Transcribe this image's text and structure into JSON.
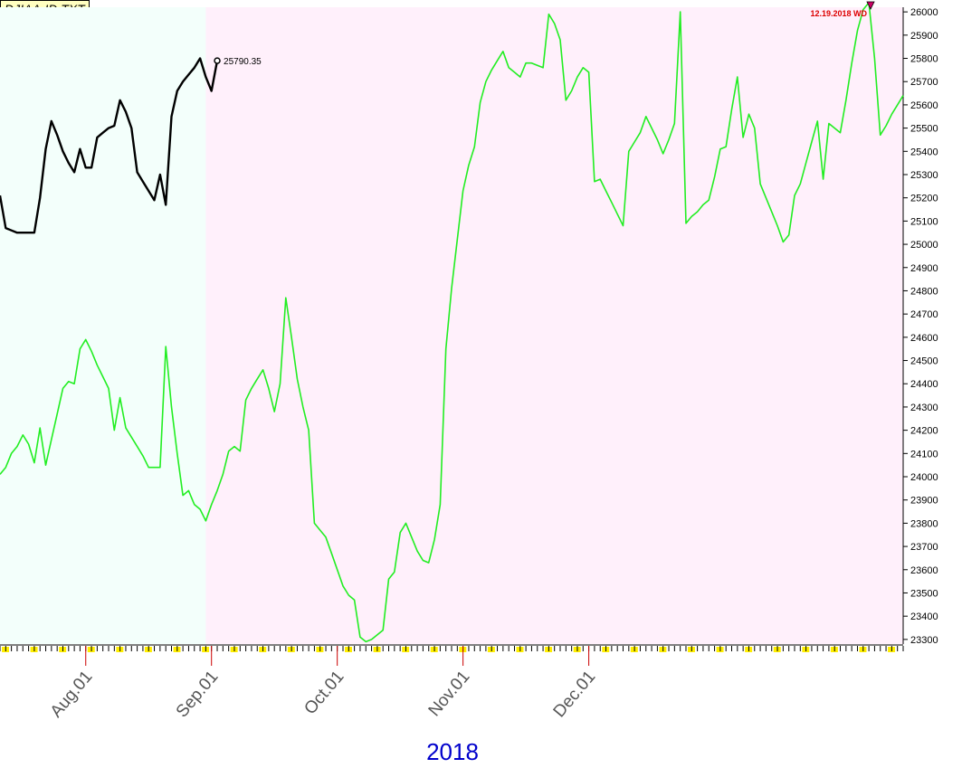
{
  "title": "DJIAA-ID.TXT",
  "chart_data": {
    "type": "line",
    "year_label": "2018",
    "x_tick_labels": [
      "Aug.01",
      "Sep.01",
      "Oct.01",
      "Nov.01",
      "Dec.01"
    ],
    "ylim": [
      23280,
      26020
    ],
    "y_ticks": [
      23300,
      23400,
      23500,
      23600,
      23700,
      23800,
      23900,
      24000,
      24100,
      24200,
      24300,
      24400,
      24500,
      24600,
      24700,
      24800,
      24900,
      25000,
      25100,
      25200,
      25300,
      25400,
      25500,
      25600,
      25700,
      25800,
      25900,
      26000
    ],
    "annotation": "12.19.2018 WD",
    "last_value_label": "25790.35",
    "series": [
      {
        "color": "#22ee22",
        "values": [
          24010,
          24040,
          24100,
          24130,
          24180,
          24140,
          24060,
          24210,
          24050,
          24160,
          24270,
          24380,
          24410,
          24400,
          24550,
          24590,
          24540,
          24480,
          24430,
          24380,
          24200,
          24340,
          24210,
          24170,
          24130,
          24090,
          24040,
          24040,
          24040,
          24560,
          24300,
          24100,
          23920,
          23940,
          23880,
          23860,
          23810,
          23880,
          23940,
          24010,
          24110,
          24130,
          24110,
          24330,
          24380,
          24420,
          24460,
          24380,
          24280,
          24400,
          24770,
          24600,
          24420,
          24300,
          24200,
          23800,
          23770,
          23740,
          23670,
          23600,
          23530,
          23490,
          23470,
          23310,
          23290,
          23300,
          23320,
          23340,
          23560,
          23590,
          23760,
          23800,
          23740,
          23680,
          23640,
          23630,
          23730,
          23880,
          24550,
          24810,
          25020,
          25230,
          25340,
          25420,
          25610,
          25700,
          25750,
          25790,
          25830,
          25760,
          25740,
          25720,
          25780,
          25780,
          25770,
          25760,
          25990,
          25950,
          25880,
          25620,
          25660,
          25720,
          25760,
          25740,
          25270,
          25280,
          25230,
          25180,
          25130,
          25080,
          25400,
          25440,
          25480,
          25550,
          25500,
          25450,
          25390,
          25450,
          25520,
          26000,
          25090,
          25120,
          25140,
          25170,
          25190,
          25290,
          25410,
          25420,
          25580,
          25720,
          25460,
          25560,
          25500,
          25260,
          25200,
          25140,
          25080,
          25010,
          25040,
          25210,
          25260,
          25350,
          25440,
          25530,
          25280,
          25520,
          25500,
          25480,
          25620,
          25780,
          25920,
          26010,
          26040,
          25800,
          25470,
          25510,
          25560,
          25600,
          25640
        ]
      },
      {
        "color": "#000000",
        "values": [
          25210,
          25070,
          25060,
          25050,
          25050,
          25050,
          25050,
          25200,
          25410,
          25530,
          25470,
          25400,
          25350,
          25310,
          25410,
          25330,
          25330,
          25460,
          25480,
          25500,
          25510,
          25620,
          25570,
          25500,
          25310,
          25270,
          25230,
          25190,
          25300,
          25170,
          25550,
          25660,
          25700,
          25730,
          25760,
          25800,
          25720,
          25660,
          25790
        ]
      }
    ]
  }
}
